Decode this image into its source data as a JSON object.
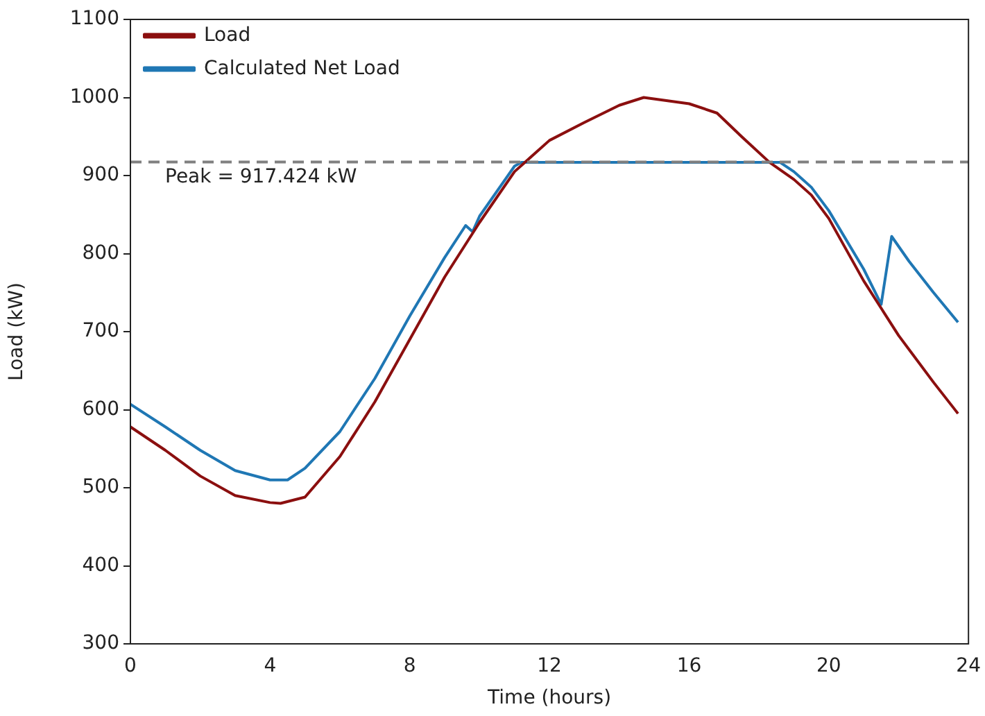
{
  "chart_data": {
    "type": "line",
    "xlabel": "Time (hours)",
    "ylabel": "Load (kW)",
    "xlim": [
      0,
      24
    ],
    "xticks": [
      0,
      4,
      8,
      12,
      16,
      20,
      24
    ],
    "ylim": [
      300,
      1100
    ],
    "yticks": [
      300,
      400,
      500,
      600,
      700,
      800,
      900,
      1000,
      1100
    ],
    "grid": false,
    "legend": "top left",
    "marker": "none",
    "line_style": "solid",
    "series": [
      {
        "name": "Load",
        "color": "#8b0f0f",
        "x": [
          0,
          1,
          2,
          3,
          4,
          4.3,
          5,
          6,
          7,
          8,
          9,
          10,
          11,
          12,
          13,
          14,
          14.7,
          16,
          16.8,
          17.5,
          18.3,
          19,
          19.5,
          20,
          21,
          21.5,
          22,
          23,
          23.7
        ],
        "values": [
          578,
          548,
          515,
          490,
          481,
          480,
          488,
          540,
          610,
          690,
          770,
          840,
          905,
          945,
          968,
          990,
          1000,
          992,
          980,
          950,
          917,
          895,
          875,
          845,
          765,
          730,
          695,
          635,
          595
        ]
      },
      {
        "name": "Calculated Net Load",
        "color": "#1f77b4",
        "x": [
          0,
          1,
          2,
          3,
          4,
          4.5,
          5,
          6,
          7,
          8,
          9,
          9.6,
          9.8,
          10,
          11,
          11.2,
          18.6,
          19,
          19.5,
          20,
          21,
          21.5,
          21.8,
          22.3,
          23,
          23.7
        ],
        "values": [
          607,
          578,
          548,
          522,
          510,
          510,
          525,
          572,
          640,
          720,
          795,
          836,
          828,
          848,
          912,
          917,
          917,
          905,
          885,
          855,
          780,
          735,
          822,
          790,
          750,
          712
        ]
      }
    ],
    "ref_lines": [
      {
        "axis": "y",
        "value": 917.424,
        "label": "Peak = 917.424 kW",
        "color": "#808080",
        "line_style": "dashed"
      }
    ]
  }
}
